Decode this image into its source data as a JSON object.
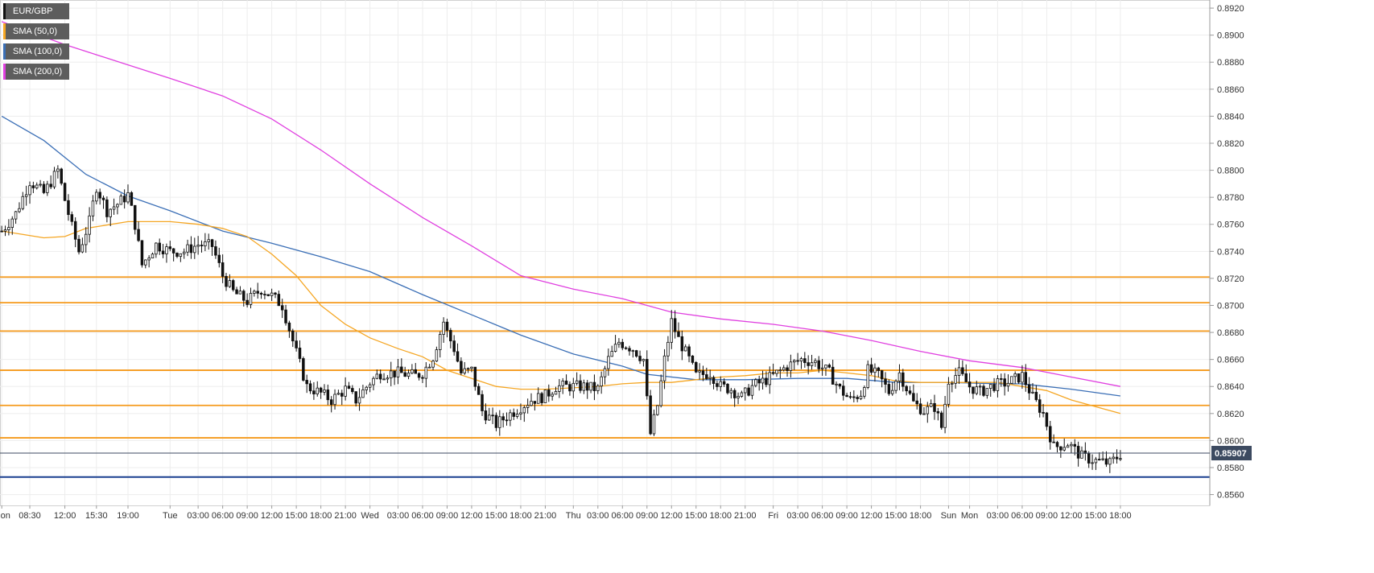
{
  "chart_data": {
    "type": "candlestick",
    "symbol": "EUR/GBP",
    "ylim": [
      0.8552,
      0.8926
    ],
    "yticks": [
      "0.8920",
      "0.8900",
      "0.8880",
      "0.8860",
      "0.8840",
      "0.8820",
      "0.8800",
      "0.8780",
      "0.8760",
      "0.8740",
      "0.8720",
      "0.8700",
      "0.8680",
      "0.8660",
      "0.8640",
      "0.8620",
      "0.8600",
      "0.8580",
      "0.8560"
    ],
    "x_slots": 345,
    "xticks": [
      {
        "label": "Mon",
        "slot": 0
      },
      {
        "label": "08:30",
        "slot": 8
      },
      {
        "label": "12:00",
        "slot": 18
      },
      {
        "label": "15:30",
        "slot": 27
      },
      {
        "label": "19:00",
        "slot": 36
      },
      {
        "label": "Tue",
        "slot": 48
      },
      {
        "label": "03:00",
        "slot": 56
      },
      {
        "label": "06:00",
        "slot": 63
      },
      {
        "label": "09:00",
        "slot": 70
      },
      {
        "label": "12:00",
        "slot": 77
      },
      {
        "label": "15:00",
        "slot": 84
      },
      {
        "label": "18:00",
        "slot": 91
      },
      {
        "label": "21:00",
        "slot": 98
      },
      {
        "label": "Wed",
        "slot": 105
      },
      {
        "label": "03:00",
        "slot": 113
      },
      {
        "label": "06:00",
        "slot": 120
      },
      {
        "label": "09:00",
        "slot": 127
      },
      {
        "label": "12:00",
        "slot": 134
      },
      {
        "label": "15:00",
        "slot": 141
      },
      {
        "label": "18:00",
        "slot": 148
      },
      {
        "label": "21:00",
        "slot": 155
      },
      {
        "label": "Thu",
        "slot": 163
      },
      {
        "label": "03:00",
        "slot": 170
      },
      {
        "label": "06:00",
        "slot": 177
      },
      {
        "label": "09:00",
        "slot": 184
      },
      {
        "label": "12:00",
        "slot": 191
      },
      {
        "label": "15:00",
        "slot": 198
      },
      {
        "label": "18:00",
        "slot": 205
      },
      {
        "label": "21:00",
        "slot": 212
      },
      {
        "label": "Fri",
        "slot": 220
      },
      {
        "label": "03:00",
        "slot": 227
      },
      {
        "label": "06:00",
        "slot": 234
      },
      {
        "label": "09:00",
        "slot": 241
      },
      {
        "label": "12:00",
        "slot": 248
      },
      {
        "label": "15:00",
        "slot": 255
      },
      {
        "label": "18:00",
        "slot": 262
      },
      {
        "label": "Sun",
        "slot": 270
      },
      {
        "label": "Mon",
        "slot": 276
      },
      {
        "label": "03:00",
        "slot": 284
      },
      {
        "label": "06:00",
        "slot": 291
      },
      {
        "label": "09:00",
        "slot": 298
      },
      {
        "label": "12:00",
        "slot": 305
      },
      {
        "label": "15:00",
        "slot": 312
      },
      {
        "label": "18:00",
        "slot": 319
      }
    ],
    "legend": [
      {
        "label": "EUR/GBP",
        "color": "#111111"
      },
      {
        "label": "SMA (50,0)",
        "color": "#f5a623"
      },
      {
        "label": "SMA (100,0)",
        "color": "#3b6fb6"
      },
      {
        "label": "SMA (200,0)",
        "color": "#e040e0"
      }
    ],
    "horizontal_levels": {
      "color": "#f59a1c",
      "values": [
        0.8721,
        0.8702,
        0.8681,
        0.8652,
        0.8626,
        0.8602
      ]
    },
    "support_line": {
      "value": 0.8573,
      "color": "#1a3f8f"
    },
    "current_price": {
      "value": 0.85907,
      "label": "0.85907",
      "color": "#3c4a60"
    },
    "sma_200": {
      "color": "#e040e0",
      "points": [
        [
          0,
          0.891
        ],
        [
          18,
          0.8893
        ],
        [
          36,
          0.8878
        ],
        [
          48,
          0.8868
        ],
        [
          63,
          0.8855
        ],
        [
          77,
          0.8838
        ],
        [
          91,
          0.8815
        ],
        [
          105,
          0.879
        ],
        [
          120,
          0.8765
        ],
        [
          134,
          0.8744
        ],
        [
          148,
          0.8722
        ],
        [
          163,
          0.8712
        ],
        [
          177,
          0.8705
        ],
        [
          191,
          0.8695
        ],
        [
          205,
          0.869
        ],
        [
          220,
          0.8686
        ],
        [
          234,
          0.8681
        ],
        [
          248,
          0.8674
        ],
        [
          262,
          0.8666
        ],
        [
          276,
          0.8659
        ],
        [
          291,
          0.8654
        ],
        [
          305,
          0.8647
        ],
        [
          319,
          0.864
        ]
      ]
    },
    "sma_100": {
      "color": "#3b6fb6",
      "points": [
        [
          0,
          0.884
        ],
        [
          12,
          0.8822
        ],
        [
          24,
          0.8797
        ],
        [
          36,
          0.8781
        ],
        [
          48,
          0.877
        ],
        [
          63,
          0.8755
        ],
        [
          77,
          0.8746
        ],
        [
          91,
          0.8736
        ],
        [
          105,
          0.8725
        ],
        [
          120,
          0.8708
        ],
        [
          134,
          0.8693
        ],
        [
          148,
          0.8678
        ],
        [
          163,
          0.8664
        ],
        [
          177,
          0.8655
        ],
        [
          184,
          0.8649
        ],
        [
          198,
          0.8645
        ],
        [
          212,
          0.8645
        ],
        [
          227,
          0.8646
        ],
        [
          241,
          0.8646
        ],
        [
          255,
          0.8643
        ],
        [
          270,
          0.8643
        ],
        [
          284,
          0.8642
        ],
        [
          291,
          0.8642
        ],
        [
          305,
          0.8638
        ],
        [
          319,
          0.8633
        ]
      ]
    },
    "sma_50": {
      "color": "#f5a623",
      "points": [
        [
          0,
          0.8755
        ],
        [
          12,
          0.875
        ],
        [
          18,
          0.8751
        ],
        [
          24,
          0.8757
        ],
        [
          36,
          0.8762
        ],
        [
          48,
          0.8762
        ],
        [
          56,
          0.876
        ],
        [
          63,
          0.8757
        ],
        [
          70,
          0.8751
        ],
        [
          77,
          0.8738
        ],
        [
          84,
          0.8722
        ],
        [
          91,
          0.87
        ],
        [
          98,
          0.8686
        ],
        [
          105,
          0.8676
        ],
        [
          113,
          0.8668
        ],
        [
          120,
          0.8662
        ],
        [
          127,
          0.8652
        ],
        [
          134,
          0.8646
        ],
        [
          141,
          0.864
        ],
        [
          148,
          0.8638
        ],
        [
          155,
          0.8638
        ],
        [
          163,
          0.8639
        ],
        [
          170,
          0.864
        ],
        [
          177,
          0.8642
        ],
        [
          184,
          0.8643
        ],
        [
          191,
          0.8643
        ],
        [
          198,
          0.8645
        ],
        [
          205,
          0.8647
        ],
        [
          212,
          0.8648
        ],
        [
          220,
          0.865
        ],
        [
          227,
          0.865
        ],
        [
          234,
          0.8652
        ],
        [
          241,
          0.865
        ],
        [
          248,
          0.8648
        ],
        [
          255,
          0.8644
        ],
        [
          262,
          0.8643
        ],
        [
          270,
          0.8643
        ],
        [
          276,
          0.8643
        ],
        [
          284,
          0.8643
        ],
        [
          291,
          0.864
        ],
        [
          298,
          0.8637
        ],
        [
          305,
          0.863
        ],
        [
          312,
          0.8625
        ],
        [
          319,
          0.862
        ]
      ]
    },
    "candle_anchors": [
      [
        0,
        0.8755
      ],
      [
        4,
        0.8768
      ],
      [
        8,
        0.8792
      ],
      [
        12,
        0.8783
      ],
      [
        16,
        0.88
      ],
      [
        18,
        0.8778
      ],
      [
        20,
        0.8758
      ],
      [
        22,
        0.874
      ],
      [
        25,
        0.8762
      ],
      [
        27,
        0.8788
      ],
      [
        30,
        0.877
      ],
      [
        33,
        0.8775
      ],
      [
        36,
        0.8782
      ],
      [
        38,
        0.876
      ],
      [
        40,
        0.873
      ],
      [
        44,
        0.8745
      ],
      [
        48,
        0.874
      ],
      [
        52,
        0.874
      ],
      [
        56,
        0.8745
      ],
      [
        60,
        0.8744
      ],
      [
        63,
        0.8722
      ],
      [
        66,
        0.871
      ],
      [
        70,
        0.8703
      ],
      [
        74,
        0.8712
      ],
      [
        77,
        0.8707
      ],
      [
        80,
        0.87
      ],
      [
        84,
        0.8665
      ],
      [
        87,
        0.864
      ],
      [
        91,
        0.8635
      ],
      [
        94,
        0.863
      ],
      [
        98,
        0.8638
      ],
      [
        101,
        0.863
      ],
      [
        105,
        0.8643
      ],
      [
        108,
        0.865
      ],
      [
        113,
        0.865
      ],
      [
        118,
        0.8648
      ],
      [
        120,
        0.865
      ],
      [
        123,
        0.8662
      ],
      [
        126,
        0.8688
      ],
      [
        127,
        0.868
      ],
      [
        129,
        0.8668
      ],
      [
        131,
        0.865
      ],
      [
        134,
        0.8652
      ],
      [
        137,
        0.8622
      ],
      [
        141,
        0.8612
      ],
      [
        144,
        0.8618
      ],
      [
        148,
        0.8625
      ],
      [
        151,
        0.863
      ],
      [
        155,
        0.8633
      ],
      [
        158,
        0.864
      ],
      [
        163,
        0.864
      ],
      [
        166,
        0.864
      ],
      [
        170,
        0.8638
      ],
      [
        173,
        0.866
      ],
      [
        176,
        0.8673
      ],
      [
        180,
        0.8668
      ],
      [
        183,
        0.866
      ],
      [
        184,
        0.863
      ],
      [
        185,
        0.8605
      ],
      [
        187,
        0.8626
      ],
      [
        189,
        0.866
      ],
      [
        191,
        0.8688
      ],
      [
        193,
        0.8675
      ],
      [
        196,
        0.866
      ],
      [
        198,
        0.8648
      ],
      [
        202,
        0.865
      ],
      [
        205,
        0.864
      ],
      [
        208,
        0.8638
      ],
      [
        211,
        0.8632
      ],
      [
        214,
        0.864
      ],
      [
        218,
        0.8645
      ],
      [
        220,
        0.8648
      ],
      [
        224,
        0.8655
      ],
      [
        228,
        0.866
      ],
      [
        232,
        0.8658
      ],
      [
        236,
        0.865
      ],
      [
        239,
        0.8638
      ],
      [
        242,
        0.863
      ],
      [
        245,
        0.8635
      ],
      [
        247,
        0.8652
      ],
      [
        250,
        0.8648
      ],
      [
        253,
        0.8636
      ],
      [
        256,
        0.865
      ],
      [
        260,
        0.8628
      ],
      [
        263,
        0.8622
      ],
      [
        266,
        0.8625
      ],
      [
        268,
        0.861
      ],
      [
        270,
        0.8645
      ],
      [
        273,
        0.865
      ],
      [
        276,
        0.864
      ],
      [
        279,
        0.8636
      ],
      [
        283,
        0.8641
      ],
      [
        287,
        0.8643
      ],
      [
        291,
        0.8648
      ],
      [
        294,
        0.8632
      ],
      [
        297,
        0.862
      ],
      [
        300,
        0.8595
      ],
      [
        304,
        0.8598
      ],
      [
        308,
        0.8588
      ],
      [
        312,
        0.8585
      ],
      [
        316,
        0.8583
      ],
      [
        319,
        0.859
      ]
    ]
  }
}
